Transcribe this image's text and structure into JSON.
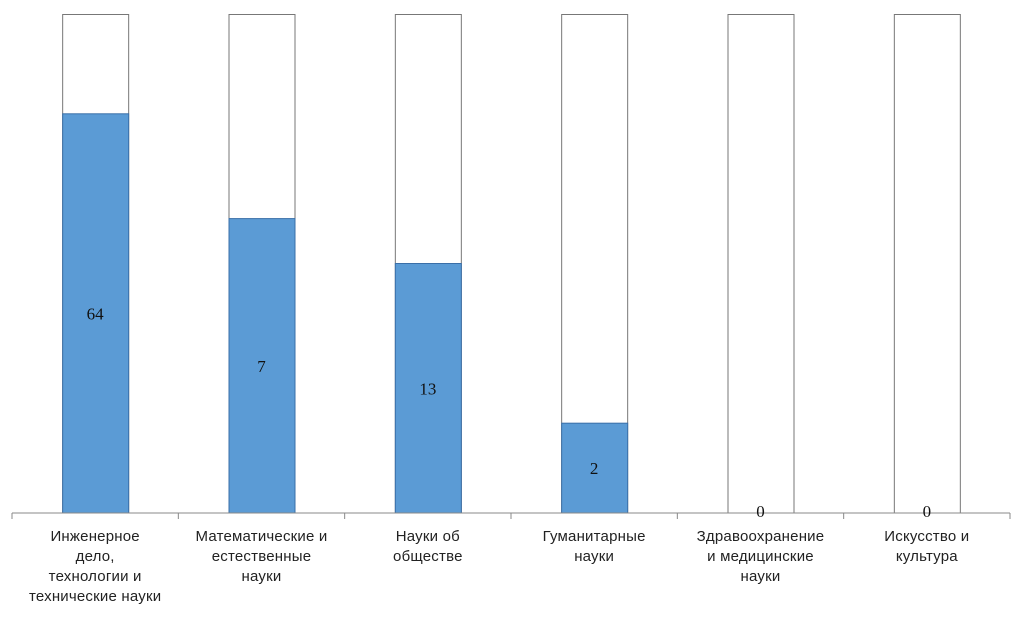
{
  "chart_data": {
    "type": "bar",
    "stacked_100": true,
    "categories": [
      "Инженерное\nдело,\nтехнологии и\nтехнические науки",
      "Математические и\nестественные\nнауки",
      "Науки об\nобществе",
      "Гуманитарные\nнауки",
      "Здравоохранение\nи медицинские\nнауки",
      "Искусство и\nкультура"
    ],
    "values": [
      64,
      7,
      13,
      2,
      0,
      0
    ],
    "value_labels": [
      "64",
      "7",
      "13",
      "2",
      "0",
      "0"
    ],
    "fill_fraction": [
      0.8,
      0.59,
      0.5,
      0.18,
      0,
      0
    ],
    "colors": {
      "filled": "#5b9bd5",
      "filled_border": "#3a6fa8",
      "empty_border": "#777777",
      "axis": "#888888"
    },
    "grid": false,
    "legend": "none"
  }
}
